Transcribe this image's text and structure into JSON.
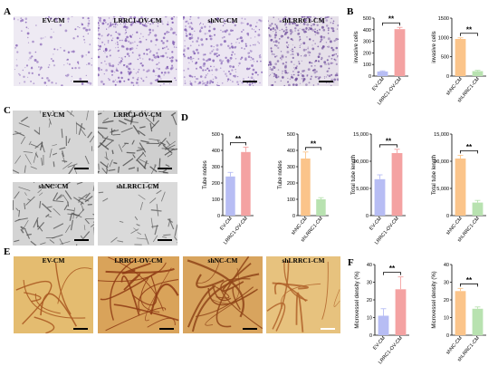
{
  "panels": {
    "A": {
      "label": "A",
      "images": [
        "EV-CM",
        "LRRC1-OV-CM",
        "shNC-CM",
        "shLRRC1-CM"
      ]
    },
    "B": {
      "label": "B"
    },
    "C": {
      "label": "C",
      "images": [
        "EV-CM",
        "LRRC1-OV-CM",
        "shNC-CM",
        "shLRRC1-CM"
      ]
    },
    "D": {
      "label": "D"
    },
    "E": {
      "label": "E",
      "images": [
        "EV-CM",
        "LRRC1-OV-CM",
        "shNC-CM",
        "shLRRC1-CM"
      ]
    },
    "F": {
      "label": "F"
    }
  },
  "colors": {
    "blue_bar": "#b7bdf4",
    "pink_bar": "#f4a2a2",
    "orange_bar": "#fbc48a",
    "green_bar": "#b8e2b0"
  },
  "chart_data": [
    {
      "id": "b1",
      "type": "bar",
      "categories": [
        "EV-CM",
        "LRRC1-OV-CM"
      ],
      "values": [
        40,
        405
      ],
      "errors": [
        5,
        15
      ],
      "ylabel": "invasive cells",
      "ylim": [
        0,
        500
      ],
      "yticks": [
        "0",
        "100",
        "200",
        "300",
        "400",
        "500"
      ],
      "sig": "**",
      "colors": [
        "#b7bdf4",
        "#f4a2a2"
      ]
    },
    {
      "id": "b2",
      "type": "bar",
      "categories": [
        "shNC-CM",
        "shLRRC1-CM"
      ],
      "values": [
        960,
        130
      ],
      "errors": [
        30,
        20
      ],
      "ylabel": "invasive cells",
      "ylim": [
        0,
        1500
      ],
      "yticks": [
        "0",
        "500",
        "1000",
        "1500"
      ],
      "sig": "**",
      "colors": [
        "#fbc48a",
        "#b8e2b0"
      ]
    },
    {
      "id": "d1",
      "type": "bar",
      "categories": [
        "EV-CM",
        "LRRC1-OV-CM"
      ],
      "values": [
        240,
        390
      ],
      "errors": [
        25,
        30
      ],
      "ylabel": "Tube nodes",
      "ylim": [
        0,
        500
      ],
      "yticks": [
        "0",
        "100",
        "200",
        "300",
        "400",
        "500"
      ],
      "sig": "**",
      "colors": [
        "#b7bdf4",
        "#f4a2a2"
      ]
    },
    {
      "id": "d2",
      "type": "bar",
      "categories": [
        "shNC-CM",
        "shLRRC1-CM"
      ],
      "values": [
        350,
        100
      ],
      "errors": [
        40,
        10
      ],
      "ylabel": "Tube nodes",
      "ylim": [
        0,
        500
      ],
      "yticks": [
        "0",
        "100",
        "200",
        "300",
        "400",
        "500"
      ],
      "sig": "**",
      "colors": [
        "#fbc48a",
        "#b8e2b0"
      ]
    },
    {
      "id": "d3",
      "type": "bar",
      "categories": [
        "EV-CM",
        "LRRC1-OV-CM"
      ],
      "values": [
        6700,
        11500
      ],
      "errors": [
        800,
        700
      ],
      "ylabel": "Total tube length",
      "ylim": [
        0,
        15000
      ],
      "yticks": [
        "0",
        "5,000",
        "10,000",
        "15,000"
      ],
      "sig": "**",
      "colors": [
        "#b7bdf4",
        "#f4a2a2"
      ]
    },
    {
      "id": "d4",
      "type": "bar",
      "categories": [
        "shNC-CM",
        "shLRRC1-CM"
      ],
      "values": [
        10500,
        2400
      ],
      "errors": [
        600,
        400
      ],
      "ylabel": "Total tube length",
      "ylim": [
        0,
        15000
      ],
      "yticks": [
        "0",
        "5,000",
        "10,000",
        "15,000"
      ],
      "sig": "**",
      "colors": [
        "#fbc48a",
        "#b8e2b0"
      ]
    },
    {
      "id": "f1",
      "type": "bar",
      "categories": [
        "EV-CM",
        "LRRC1-OV-CM"
      ],
      "values": [
        11,
        26
      ],
      "errors": [
        4,
        7
      ],
      "ylabel": "Microvessel density (%)",
      "ylim": [
        0,
        40
      ],
      "yticks": [
        "0",
        "10",
        "20",
        "30",
        "40"
      ],
      "sig": "**",
      "colors": [
        "#b7bdf4",
        "#f4a2a2"
      ]
    },
    {
      "id": "f2",
      "type": "bar",
      "categories": [
        "shNC-CM",
        "shLRRC1-CM"
      ],
      "values": [
        25,
        15
      ],
      "errors": [
        1.5,
        1
      ],
      "ylabel": "Microvessel density (%)",
      "ylim": [
        0,
        40
      ],
      "yticks": [
        "0",
        "10",
        "20",
        "30",
        "40"
      ],
      "sig": "**",
      "colors": [
        "#fbc48a",
        "#b8e2b0"
      ]
    }
  ]
}
